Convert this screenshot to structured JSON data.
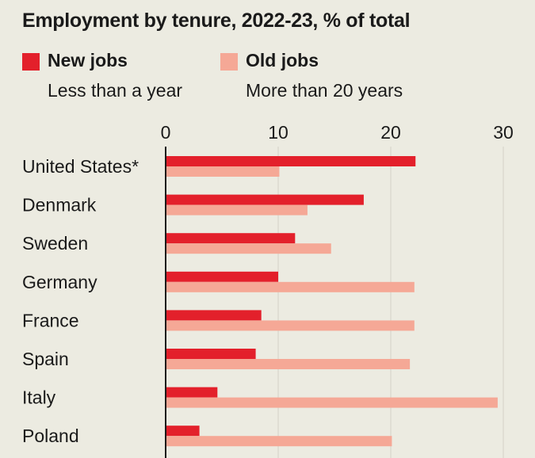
{
  "title": "Employment by tenure, 2022-23, % of total",
  "legend": [
    {
      "label": "New jobs",
      "sub": "Less than a year",
      "color": "#e3202b"
    },
    {
      "label": "Old jobs",
      "sub": "More than 20 years",
      "color": "#f5a896"
    }
  ],
  "colors": {
    "background": "#ecebe1",
    "grid": "#d3d1c6",
    "axis": "#1a1a1a"
  },
  "chart_data": {
    "type": "bar",
    "orientation": "horizontal",
    "title": "Employment by tenure, 2022-23, % of total",
    "categories": [
      "United States*",
      "Denmark",
      "Sweden",
      "Germany",
      "France",
      "Spain",
      "Italy",
      "Poland"
    ],
    "series": [
      {
        "name": "New jobs",
        "description": "Less than a year",
        "values": [
          22.2,
          17.6,
          11.5,
          10.0,
          8.5,
          8.0,
          4.6,
          3.0
        ]
      },
      {
        "name": "Old jobs",
        "description": "More than 20 years",
        "values": [
          10.1,
          12.6,
          14.7,
          22.1,
          22.1,
          21.7,
          29.5,
          20.1
        ]
      }
    ],
    "xlim": [
      0,
      30
    ],
    "xticks": [
      0,
      10,
      20,
      30
    ],
    "xtick_labels": [
      "0",
      "10",
      "20",
      "30"
    ],
    "grid": true,
    "legend_position": "top-left"
  }
}
